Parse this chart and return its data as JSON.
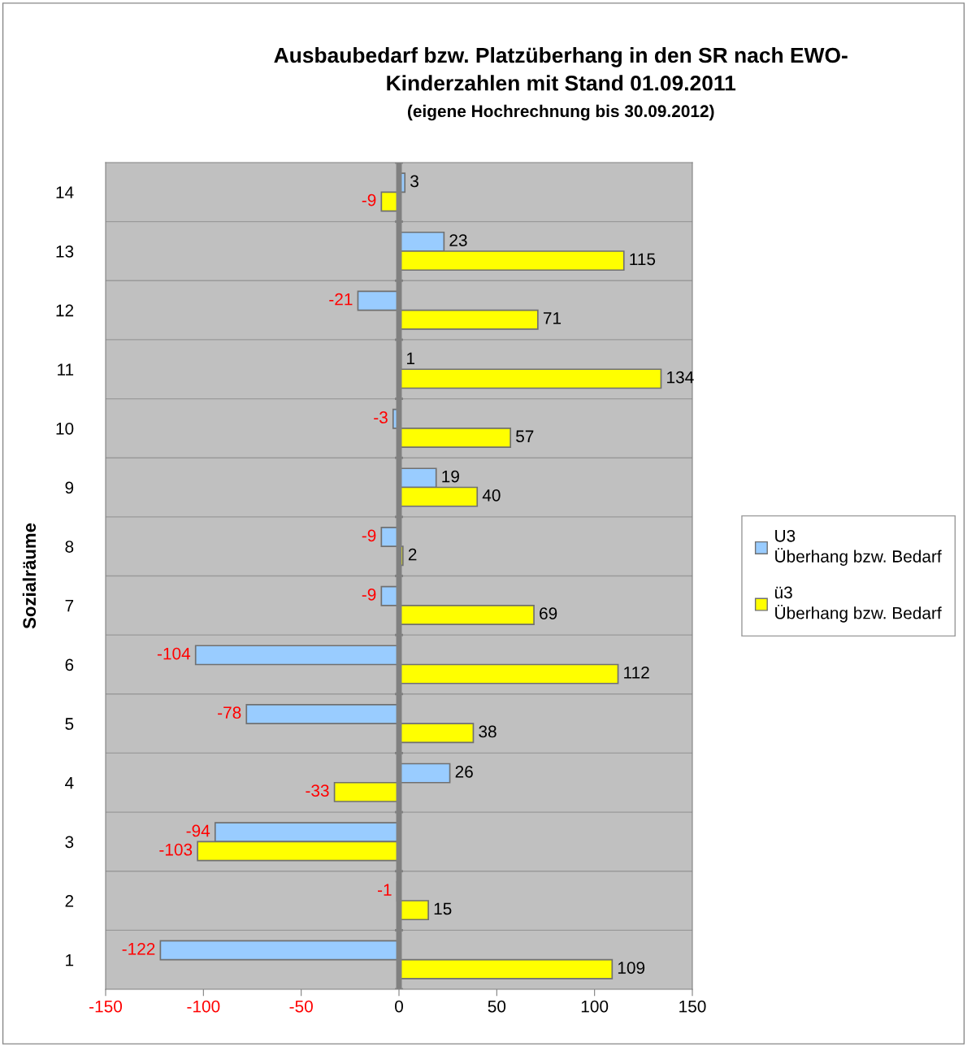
{
  "chart_data": {
    "type": "bar",
    "orientation": "horizontal",
    "title": "Ausbaubedarf bzw. Platzüberhang in den SR nach EWO-\nKinderzahlen mit Stand 01.09.2011",
    "subtitle": "(eigene Hochrechnung bis 30.09.2012)",
    "ylabel": "Sozialräume",
    "categories": [
      "14",
      "13",
      "12",
      "11",
      "10",
      "9",
      "8",
      "7",
      "6",
      "5",
      "4",
      "3",
      "2",
      "1"
    ],
    "series": [
      {
        "name": "U3\nÜberhang bzw. Bedarf",
        "color": "#99ccff",
        "values": [
          3,
          23,
          -21,
          1,
          -3,
          19,
          -9,
          -9,
          -104,
          -78,
          26,
          -94,
          -1,
          -122
        ]
      },
      {
        "name": "ü3\nÜberhang bzw. Bedarf",
        "color": "#ffff00",
        "values": [
          -9,
          115,
          71,
          134,
          57,
          40,
          2,
          69,
          112,
          38,
          -33,
          -103,
          15,
          109
        ]
      }
    ],
    "xlim": [
      -150,
      150
    ],
    "xticks": [
      -150,
      -100,
      -50,
      0,
      50,
      100,
      150
    ],
    "grid": "y",
    "legend": "right",
    "data_labels": true
  }
}
